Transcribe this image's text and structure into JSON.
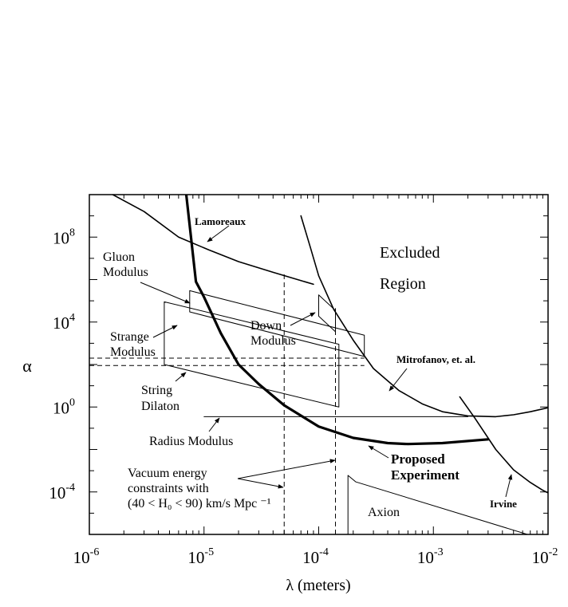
{
  "chart_data": {
    "type": "line",
    "title": "",
    "xlabel": "λ (meters)",
    "ylabel": "α",
    "x_scale": "log",
    "y_scale": "log",
    "xlim": [
      1e-06,
      0.01
    ],
    "ylim": [
      1e-06,
      10000000000.0
    ],
    "grid": false,
    "x_ticks": [
      {
        "value": 1e-06,
        "base": "10",
        "exp": "-6"
      },
      {
        "value": 1e-05,
        "base": "10",
        "exp": "-5"
      },
      {
        "value": 0.0001,
        "base": "10",
        "exp": "-4"
      },
      {
        "value": 0.001,
        "base": "10",
        "exp": "-3"
      },
      {
        "value": 0.01,
        "base": "10",
        "exp": "-2"
      }
    ],
    "y_ticks": [
      {
        "value": 100000000.0,
        "base": "10",
        "exp": "8"
      },
      {
        "value": 10000.0,
        "base": "10",
        "exp": "4"
      },
      {
        "value": 1.0,
        "base": "10",
        "exp": "0"
      },
      {
        "value": 0.0001,
        "base": "10",
        "exp": "-4"
      }
    ],
    "curves": [
      {
        "name": "Lamoreaux",
        "points": [
          [
            1.6e-06,
            10000000000.0
          ],
          [
            3e-06,
            1600000000.0
          ],
          [
            6e-06,
            100000000.0
          ],
          [
            1.1e-05,
            25000000.0
          ],
          [
            2e-05,
            7000000.0
          ],
          [
            4e-05,
            2200000.0
          ],
          [
            9e-05,
            600000.0
          ]
        ]
      },
      {
        "name": "Mitrofanov, et. al.",
        "points": [
          [
            7e-05,
            1000000000.0
          ],
          [
            8.5e-05,
            30000000.0
          ],
          [
            0.0001,
            1500000.0
          ],
          [
            0.000135,
            40000.0
          ],
          [
            0.0002,
            1400.0
          ],
          [
            0.0003,
            65
          ],
          [
            0.0005,
            6
          ],
          [
            0.0008,
            1.4
          ],
          [
            0.0012,
            0.6
          ],
          [
            0.002,
            0.38
          ],
          [
            0.0035,
            0.35
          ],
          [
            0.005,
            0.43
          ],
          [
            0.007,
            0.6
          ],
          [
            0.01,
            0.92
          ]
        ]
      },
      {
        "name": "Irvine",
        "points": [
          [
            0.0017,
            3
          ],
          [
            0.0023,
            0.3
          ],
          [
            0.0035,
            0.01
          ],
          [
            0.005,
            0.0011
          ],
          [
            0.007,
            0.00028
          ],
          [
            0.009,
            0.00012
          ],
          [
            0.01,
            9e-05
          ]
        ]
      },
      {
        "name": "Proposed Experiment",
        "thick": true,
        "points": [
          [
            7e-06,
            10000000000.0
          ],
          [
            8.5e-06,
            800000.0
          ],
          [
            1e-05,
            150000.0
          ],
          [
            1.4e-05,
            3000.0
          ],
          [
            2e-05,
            100.0
          ],
          [
            3e-05,
            12
          ],
          [
            5e-05,
            1.2
          ],
          [
            0.0001,
            0.12
          ],
          [
            0.0002,
            0.035
          ],
          [
            0.0004,
            0.02
          ],
          [
            0.0006,
            0.018
          ],
          [
            0.0012,
            0.02
          ],
          [
            0.003,
            0.03
          ]
        ]
      },
      {
        "name": "Gluon Modulus",
        "thin": true,
        "closed": false,
        "points": [
          [
            7.5e-06,
            300000.0
          ],
          [
            0.00025,
            2400.0
          ],
          [
            0.00025,
            240.0
          ],
          [
            7.5e-06,
            30000.0
          ],
          [
            7.5e-06,
            300000.0
          ]
        ]
      },
      {
        "name": "Strange Modulus",
        "thin": true,
        "points": [
          [
            4.5e-06,
            90000.0
          ],
          [
            0.00015,
            900.0
          ],
          [
            0.00015,
            1.0
          ],
          [
            4.5e-06,
            100.0
          ],
          [
            4.5e-06,
            90000.0
          ]
        ]
      },
      {
        "name": "Down Modulus",
        "thin": true,
        "points": [
          [
            0.0001,
            190000.0
          ],
          [
            0.00014,
            35000.0
          ],
          [
            0.00014,
            3500.0
          ],
          [
            0.0001,
            19000.0
          ],
          [
            0.0001,
            190000.0
          ]
        ]
      },
      {
        "name": "Radius Modulus",
        "thin": true,
        "points": [
          [
            1e-05,
            0.35
          ],
          [
            0.002,
            0.35
          ]
        ]
      },
      {
        "name": "Axion",
        "thin": true,
        "points": [
          [
            0.00018,
            1e-06
          ],
          [
            0.00018,
            0.0006
          ],
          [
            0.00021,
            0.0003
          ],
          [
            0.0066,
            1e-06
          ]
        ]
      }
    ],
    "dashed_lines": [
      {
        "points": [
          [
            5e-05,
            1e-06
          ],
          [
            5e-05,
            2000000.0
          ]
        ]
      },
      {
        "points": [
          [
            0.00014,
            1e-06
          ],
          [
            0.00014,
            45000.0
          ]
        ]
      },
      {
        "points": [
          [
            1e-06,
            200
          ],
          [
            0.00025,
            200
          ]
        ]
      },
      {
        "points": [
          [
            1e-06,
            90
          ],
          [
            0.00025,
            90
          ]
        ]
      }
    ],
    "annotations": [
      {
        "id": "lamoreaux",
        "text": "Lamoreaux",
        "bold": true
      },
      {
        "id": "gluon",
        "lines": [
          "Gluon",
          "Modulus"
        ]
      },
      {
        "id": "strange",
        "lines": [
          "Strange",
          "Modulus"
        ]
      },
      {
        "id": "string",
        "lines": [
          "String",
          "Dilaton"
        ]
      },
      {
        "id": "radius",
        "text": "Radius Modulus"
      },
      {
        "id": "vacuum",
        "lines": [
          "Vacuum energy",
          "constraints with",
          "(40 < H₀ < 90) km/s Mpc ⁻¹"
        ]
      },
      {
        "id": "down",
        "lines": [
          "Down",
          "Modulus"
        ]
      },
      {
        "id": "excluded",
        "lines": [
          "Excluded",
          "Region"
        ]
      },
      {
        "id": "mitrofanov",
        "text": "Mitrofanov, et. al.",
        "bold": true
      },
      {
        "id": "proposed",
        "lines": [
          "Proposed",
          "Experiment"
        ],
        "bold": true
      },
      {
        "id": "axion",
        "text": "Axion"
      },
      {
        "id": "irvine",
        "text": "Irvine",
        "bold": true
      }
    ]
  }
}
